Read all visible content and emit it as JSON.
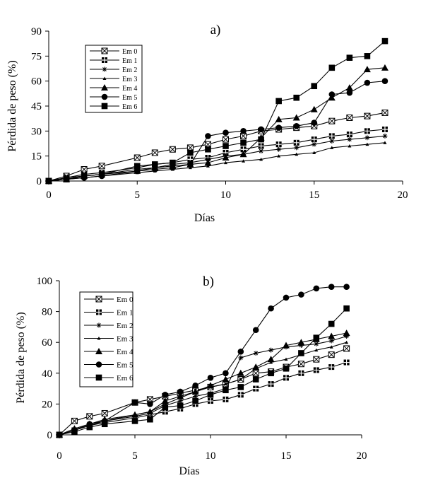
{
  "chart_data": [
    {
      "type": "line",
      "title": "a)",
      "xlabel": "Días",
      "ylabel": "Pérdida  de peso (%)",
      "xlim": [
        0,
        20
      ],
      "ylim": [
        0,
        90
      ],
      "xticks": [
        0,
        5,
        10,
        15,
        20
      ],
      "yticks": [
        0,
        15,
        30,
        45,
        60,
        75,
        90
      ],
      "grid": false,
      "legend_position": "top-left",
      "x": [
        0,
        1,
        2,
        3,
        5,
        6,
        7,
        8,
        9,
        10,
        11,
        12,
        13,
        14,
        15,
        16,
        17,
        18,
        19
      ],
      "series": [
        {
          "name": "Em 0",
          "marker": "square-x",
          "values": [
            0,
            3,
            7,
            9,
            14,
            17,
            19,
            20,
            22,
            25,
            27,
            30,
            31,
            32,
            33,
            36,
            38,
            39,
            41
          ]
        },
        {
          "name": "Em 1",
          "marker": "square-plus",
          "values": [
            0,
            2,
            4,
            5,
            8,
            10,
            11,
            13,
            14,
            17,
            19,
            21,
            22,
            23,
            25,
            27,
            28,
            30,
            31
          ]
        },
        {
          "name": "Em 2",
          "marker": "star",
          "values": [
            0,
            2,
            3,
            4,
            7,
            8,
            10,
            11,
            13,
            15,
            16,
            18,
            19,
            20,
            22,
            24,
            25,
            26,
            27
          ]
        },
        {
          "name": "Em 3",
          "marker": "small-triangle",
          "values": [
            0,
            1,
            2,
            3,
            5,
            6,
            7,
            8,
            9,
            11,
            12,
            13,
            15,
            16,
            17,
            20,
            21,
            22,
            23
          ]
        },
        {
          "name": "Em 4",
          "marker": "triangle",
          "values": [
            0,
            1,
            3,
            4,
            6,
            8,
            9,
            10,
            11,
            14,
            16,
            26,
            37,
            38,
            43,
            50,
            56,
            67,
            68
          ]
        },
        {
          "name": "Em 5",
          "marker": "circle",
          "values": [
            0,
            1,
            2,
            3,
            6,
            7,
            8,
            10,
            27,
            29,
            30,
            31,
            32,
            33,
            35,
            52,
            53,
            59,
            60
          ]
        },
        {
          "name": "Em 6",
          "marker": "filled-square",
          "values": [
            0,
            1,
            3,
            4,
            9,
            10,
            11,
            17,
            19,
            21,
            23,
            25,
            48,
            50,
            57,
            68,
            74,
            75,
            84
          ]
        }
      ]
    },
    {
      "type": "line",
      "title": "b)",
      "xlabel": "Días",
      "ylabel": "Pérdida  de peso (%)",
      "xlim": [
        0,
        20
      ],
      "ylim": [
        0,
        100
      ],
      "xticks": [
        0,
        5,
        10,
        15,
        20
      ],
      "yticks": [
        0,
        20,
        40,
        60,
        80,
        100
      ],
      "grid": false,
      "legend_position": "top-left",
      "x": [
        0,
        1,
        2,
        3,
        5,
        6,
        7,
        8,
        9,
        10,
        11,
        12,
        13,
        14,
        15,
        16,
        17,
        18,
        19
      ],
      "series": [
        {
          "name": "Em 0",
          "marker": "square-x",
          "values": [
            0,
            9,
            12,
            14,
            21,
            23,
            25,
            27,
            29,
            31,
            33,
            36,
            40,
            41,
            44,
            46,
            49,
            52,
            56
          ]
        },
        {
          "name": "Em 1",
          "marker": "square-plus",
          "values": [
            0,
            3,
            6,
            8,
            11,
            13,
            15,
            17,
            20,
            22,
            23,
            26,
            30,
            33,
            37,
            40,
            42,
            44,
            47
          ]
        },
        {
          "name": "Em 2",
          "marker": "star",
          "values": [
            0,
            3,
            6,
            9,
            12,
            14,
            19,
            22,
            25,
            27,
            30,
            50,
            53,
            55,
            57,
            58,
            59,
            61,
            64
          ]
        },
        {
          "name": "Em 3",
          "marker": "small-triangle",
          "values": [
            0,
            3,
            7,
            9,
            13,
            15,
            20,
            24,
            28,
            31,
            33,
            36,
            43,
            47,
            49,
            52,
            55,
            57,
            60
          ]
        },
        {
          "name": "Em 4",
          "marker": "triangle",
          "values": [
            0,
            4,
            7,
            10,
            13,
            15,
            22,
            25,
            28,
            32,
            36,
            40,
            44,
            49,
            58,
            60,
            62,
            64,
            66
          ]
        },
        {
          "name": "Em 5",
          "marker": "circle",
          "values": [
            0,
            3,
            7,
            9,
            21,
            20,
            26,
            28,
            32,
            37,
            40,
            54,
            68,
            82,
            89,
            91,
            95,
            96,
            96
          ]
        },
        {
          "name": "Em 6",
          "marker": "filled-square",
          "values": [
            0,
            2,
            5,
            7,
            9,
            10,
            18,
            19,
            22,
            26,
            29,
            31,
            36,
            40,
            43,
            53,
            63,
            72,
            82
          ]
        }
      ]
    }
  ]
}
